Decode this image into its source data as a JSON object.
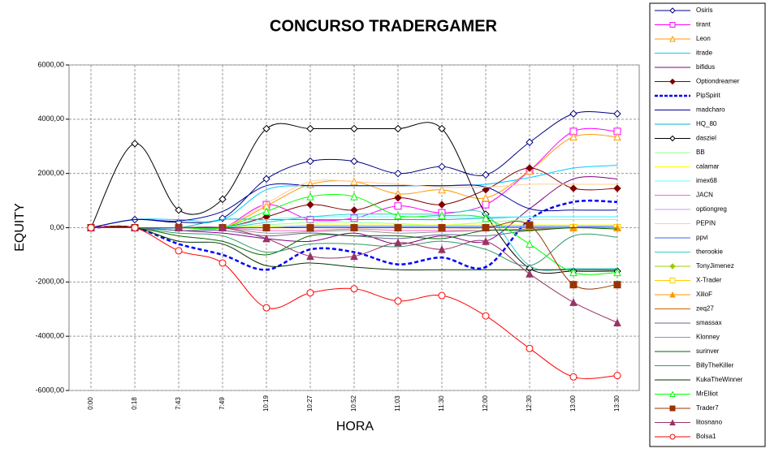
{
  "chart_data": {
    "type": "line",
    "title": "CONCURSO TRADERGAMER",
    "x_label": "HORA",
    "y_label": "EQUITY",
    "categories": [
      "0:00",
      "0:18",
      "7:43",
      "7:49",
      "10:19",
      "10:27",
      "10:52",
      "11:03",
      "11:30",
      "12:00",
      "12:30",
      "13:00",
      "13:30"
    ],
    "ylim": [
      -6000,
      6000
    ],
    "yticks": [
      {
        "value": -6000,
        "label": "-6000,00"
      },
      {
        "value": -4000,
        "label": "-4000,00"
      },
      {
        "value": -2000,
        "label": "-2000,00"
      },
      {
        "value": 0,
        "label": "0,00"
      },
      {
        "value": 2000,
        "label": "2000,00"
      },
      {
        "value": 4000,
        "label": "4000,00"
      },
      {
        "value": 6000,
        "label": "6000,00"
      }
    ],
    "grid": true,
    "smooth": true,
    "legend": "right",
    "series": [
      {
        "name": "Osiris",
        "color": "#000080",
        "marker": "diamond",
        "values": [
          0,
          300,
          200,
          350,
          1800,
          2450,
          2450,
          2000,
          2250,
          1950,
          3150,
          4200,
          4200
        ]
      },
      {
        "name": "tirant",
        "color": "#ff00ff",
        "marker": "square",
        "values": [
          0,
          0,
          0,
          0,
          850,
          300,
          350,
          800,
          550,
          850,
          2100,
          3550,
          3550
        ]
      },
      {
        "name": "Leon",
        "color": "#ff9900",
        "marker": "triangle",
        "values": [
          0,
          0,
          0,
          0,
          800,
          1600,
          1700,
          1250,
          1400,
          1100,
          2100,
          3350,
          3350
        ]
      },
      {
        "name": "itrade",
        "color": "#00ccff",
        "marker": "none",
        "values": [
          0,
          300,
          300,
          300,
          1400,
          1550,
          1550,
          1550,
          1550,
          1600,
          1850,
          2200,
          2300
        ]
      },
      {
        "name": "bifidus",
        "color": "#800080",
        "marker": "none",
        "values": [
          0,
          0,
          -100,
          -200,
          -400,
          -500,
          -200,
          -600,
          -300,
          -500,
          700,
          1800,
          1800
        ]
      },
      {
        "name": "Optiondreamer",
        "color": "#800000",
        "marker": "diamond-filled",
        "values": [
          0,
          0,
          0,
          0,
          400,
          850,
          650,
          1100,
          850,
          1400,
          2200,
          1450,
          1450
        ]
      },
      {
        "name": "PipSpirit",
        "color": "#0000ff",
        "marker": "none",
        "dash": true,
        "values": [
          0,
          0,
          -600,
          -1000,
          -1550,
          -800,
          -900,
          -1350,
          -1100,
          -1450,
          300,
          950,
          950
        ]
      },
      {
        "name": "madcharo",
        "color": "#0000a0",
        "marker": "none",
        "values": [
          0,
          300,
          250,
          600,
          1550,
          1550,
          1550,
          1550,
          1550,
          1500,
          700,
          650,
          650
        ]
      },
      {
        "name": "HQ_80",
        "color": "#00b0d0",
        "marker": "none",
        "values": [
          0,
          0,
          0,
          300,
          300,
          300,
          300,
          300,
          300,
          350,
          400,
          400,
          400
        ]
      },
      {
        "name": "dasziel",
        "color": "#000000",
        "marker": "diamond",
        "values": [
          0,
          3100,
          650,
          1050,
          3650,
          3650,
          3650,
          3650,
          3650,
          500,
          -1500,
          -1600,
          -1600
        ]
      },
      {
        "name": "BB",
        "color": "#99ff99",
        "marker": "none",
        "values": [
          0,
          0,
          0,
          0,
          100,
          200,
          200,
          150,
          100,
          200,
          300,
          300,
          300
        ]
      },
      {
        "name": "calamar",
        "color": "#ffff00",
        "marker": "none",
        "values": [
          0,
          0,
          0,
          0,
          50,
          100,
          100,
          100,
          100,
          100,
          100,
          100,
          100
        ]
      },
      {
        "name": "imex68",
        "color": "#66ffff",
        "marker": "none",
        "values": [
          0,
          0,
          0,
          0,
          300,
          400,
          400,
          400,
          400,
          400,
          400,
          400,
          400
        ]
      },
      {
        "name": "JACN",
        "color": "#ff66cc",
        "marker": "none",
        "values": [
          0,
          0,
          0,
          0,
          -100,
          -100,
          -50,
          -100,
          -100,
          -100,
          -50,
          0,
          0
        ]
      },
      {
        "name": "optiongreg",
        "color": "#cc99ff",
        "marker": "none",
        "values": [
          0,
          0,
          0,
          0,
          0,
          0,
          0,
          0,
          0,
          0,
          0,
          0,
          0
        ]
      },
      {
        "name": "PEPIN",
        "color": "#ffcc99",
        "marker": "none",
        "values": [
          0,
          0,
          0,
          0,
          900,
          1700,
          1700,
          1600,
          1500,
          1500,
          1600,
          1600,
          1600
        ]
      },
      {
        "name": "ppvi",
        "color": "#3366ff",
        "marker": "none",
        "values": [
          0,
          0,
          0,
          0,
          0,
          50,
          50,
          50,
          50,
          50,
          50,
          50,
          50
        ]
      },
      {
        "name": "therookie",
        "color": "#33cccc",
        "marker": "none",
        "values": [
          0,
          0,
          0,
          0,
          200,
          400,
          500,
          500,
          500,
          500,
          -1400,
          -1500,
          -1500
        ]
      },
      {
        "name": "TonyJimenez",
        "color": "#99cc00",
        "marker": "diamond-filled",
        "values": [
          0,
          0,
          0,
          0,
          0,
          0,
          0,
          0,
          0,
          0,
          0,
          0,
          0
        ]
      },
      {
        "name": "X-Trader",
        "color": "#ffcc00",
        "marker": "square",
        "values": [
          0,
          0,
          0,
          0,
          0,
          0,
          0,
          0,
          0,
          0,
          0,
          0,
          0
        ]
      },
      {
        "name": "XilioF",
        "color": "#ff9900",
        "marker": "triangle-filled",
        "values": [
          0,
          0,
          0,
          0,
          0,
          0,
          0,
          0,
          0,
          0,
          0,
          0,
          0
        ]
      },
      {
        "name": "zeq27",
        "color": "#cc6600",
        "marker": "none",
        "values": [
          0,
          0,
          0,
          0,
          0,
          0,
          0,
          0,
          0,
          0,
          0,
          0,
          0
        ]
      },
      {
        "name": "smassax",
        "color": "#666699",
        "marker": "none",
        "values": [
          0,
          0,
          -100,
          -100,
          -300,
          -200,
          -300,
          -400,
          -250,
          -300,
          -100,
          0,
          0
        ]
      },
      {
        "name": "Klonney",
        "color": "#969696",
        "marker": "none",
        "values": [
          0,
          0,
          0,
          0,
          -200,
          -150,
          -100,
          -200,
          -150,
          -100,
          -50,
          0,
          0
        ]
      },
      {
        "name": "surinver",
        "color": "#006600",
        "marker": "none",
        "values": [
          0,
          0,
          -300,
          -500,
          -1000,
          -300,
          -300,
          -300,
          -400,
          -100,
          -100,
          0,
          -50
        ]
      },
      {
        "name": "BillyTheKiller",
        "color": "#339966",
        "marker": "none",
        "values": [
          0,
          0,
          -200,
          -300,
          -900,
          -600,
          -600,
          -700,
          -500,
          -800,
          -1400,
          -300,
          -350
        ]
      },
      {
        "name": "KukaTheWinner",
        "color": "#003300",
        "marker": "none",
        "values": [
          0,
          0,
          -500,
          -600,
          -1400,
          -1300,
          -1450,
          -1550,
          -1550,
          -1550,
          -1550,
          -1550,
          -1550
        ]
      },
      {
        "name": "MrElliot",
        "color": "#00ff00",
        "marker": "triangle",
        "values": [
          0,
          0,
          0,
          0,
          600,
          1150,
          1150,
          450,
          450,
          350,
          -600,
          -1650,
          -1650
        ]
      },
      {
        "name": "Trader7",
        "color": "#993300",
        "marker": "square-filled",
        "values": [
          0,
          0,
          0,
          0,
          0,
          0,
          0,
          0,
          0,
          0,
          100,
          -2100,
          -2100
        ]
      },
      {
        "name": "litosnano",
        "color": "#993366",
        "marker": "triangle-filled",
        "values": [
          0,
          0,
          0,
          0,
          -400,
          -1050,
          -1050,
          -550,
          -800,
          -500,
          -1700,
          -2750,
          -3500
        ]
      },
      {
        "name": "Bolsa1",
        "color": "#ff0000",
        "marker": "circle",
        "values": [
          0,
          0,
          -850,
          -1300,
          -2950,
          -2400,
          -2250,
          -2700,
          -2500,
          -3250,
          -4450,
          -5500,
          -5450
        ]
      }
    ]
  }
}
